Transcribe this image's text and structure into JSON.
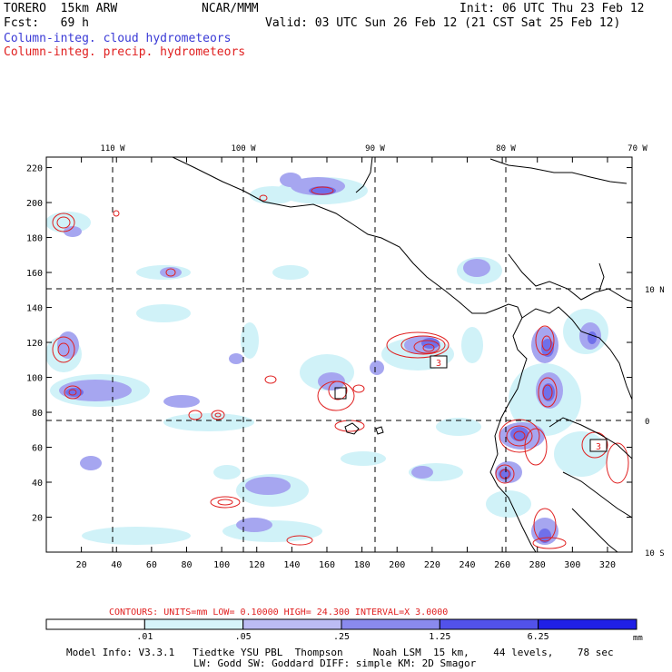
{
  "header": {
    "model": "TORERO  15km ARW",
    "center": "NCAR/MMM",
    "init": "Init: 06 UTC Thu 23 Feb 12",
    "fcst": "Fcst:   69 h",
    "valid": "Valid: 03 UTC Sun 26 Feb 12 (21 CST Sat 25 Feb 12)",
    "field1": "Column-integ. cloud hydrometeors",
    "field2": "Column-integ. precip. hydrometeors"
  },
  "map": {
    "lon_labels": [
      "110 W",
      "100 W",
      "90 W",
      "80 W",
      "70 W"
    ],
    "lat_labels": [
      "10 N",
      "0",
      "10 S"
    ],
    "x_ticks": [
      "20",
      "40",
      "60",
      "80",
      "100",
      "120",
      "140",
      "160",
      "180",
      "200",
      "220",
      "240",
      "260",
      "280",
      "300",
      "320"
    ],
    "y_ticks": [
      "220",
      "200",
      "180",
      "160",
      "140",
      "120",
      "100",
      "80",
      "60",
      "40",
      "20"
    ],
    "x_range": [
      0,
      334
    ],
    "y_range": [
      0,
      226
    ],
    "box_labels": [
      "3",
      "3"
    ],
    "colors": {
      "cloud_light": "#d0f2f8",
      "cloud_mid": "#a6a6f0",
      "cloud_dark": "#7070ea",
      "precip_contour": "#e02020",
      "grid": "#000000"
    }
  },
  "contours": {
    "text": "CONTOURS:  UNITS=mm  LOW= 0.10000      HIGH=  24.300      INTERVAL=X  3.0000"
  },
  "colorbar": {
    "labels": [
      ".01",
      ".05",
      ".25",
      "1.25",
      "6.25"
    ],
    "unit": "mm",
    "colors": [
      "#ffffff",
      "#d6f4fa",
      "#bcbcf4",
      "#8a8aee",
      "#5252ea",
      "#2020e6"
    ]
  },
  "footer": {
    "line1": "Model Info: V3.3.1   Tiedtke YSU PBL  Thompson     Noah LSM  15 km,    44 levels,    78 sec",
    "line2": "LW: Godd SW: Goddard DIFF: simple KM: 2D Smagor"
  }
}
